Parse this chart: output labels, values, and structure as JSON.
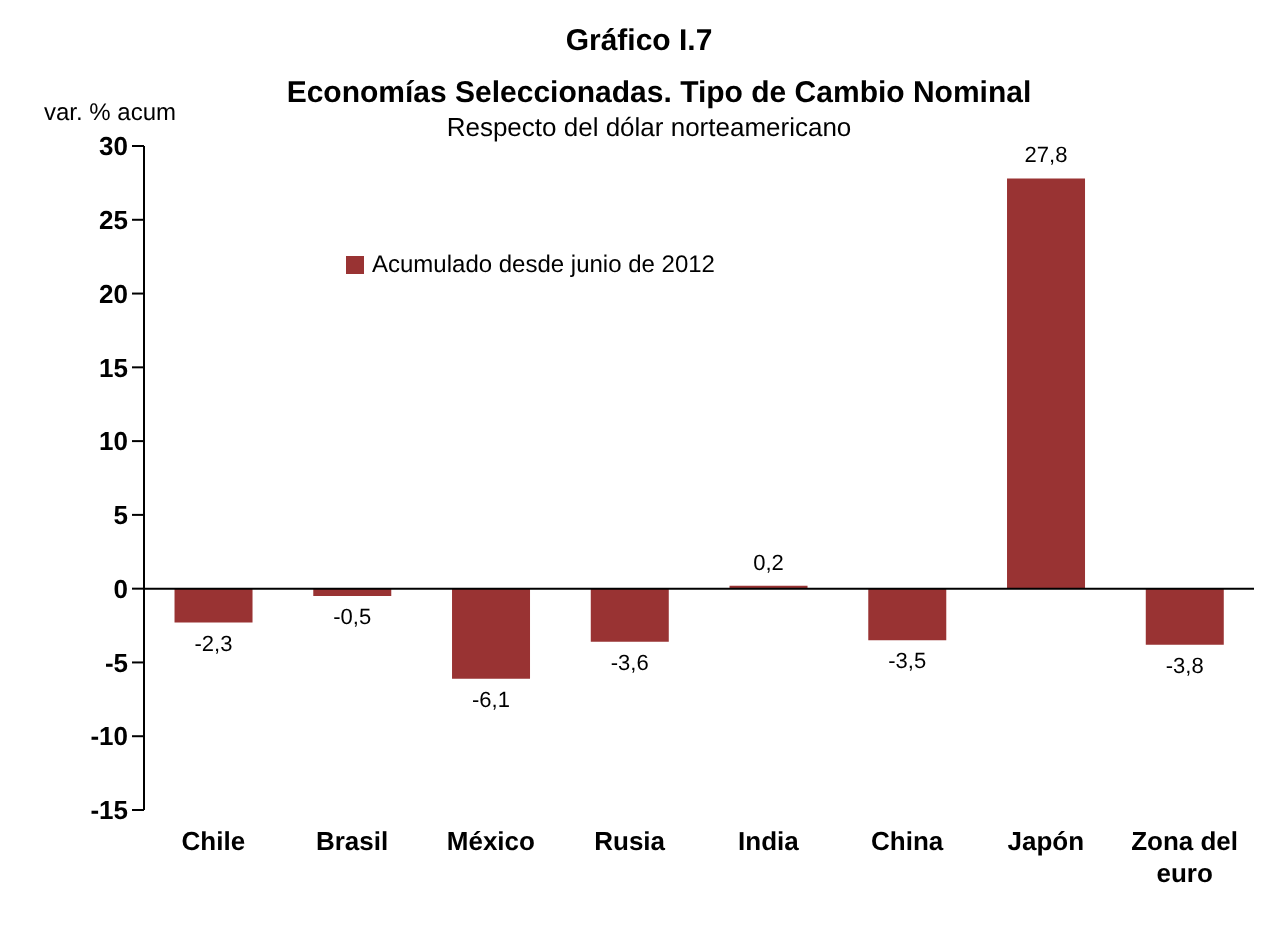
{
  "chart_data": {
    "type": "bar",
    "title": "Gráfico I.7",
    "subtitle": "Economías Seleccionadas. Tipo de Cambio Nominal",
    "annotations": [
      "Respecto del dólar norteamericano"
    ],
    "ylabel": "var. % acum",
    "categories": [
      "Chile",
      "Brasil",
      "México",
      "Rusia",
      "India",
      "China",
      "Japón",
      "Zona del euro"
    ],
    "series": [
      {
        "name": "Acumulado desde junio de 2012",
        "color": "#993333",
        "values": [
          -2.3,
          -0.5,
          -6.1,
          -3.6,
          0.2,
          -3.5,
          27.8,
          -3.8
        ],
        "value_labels": [
          "-2,3",
          "-0,5",
          "-6,1",
          "-3,6",
          "0,2",
          "-3,5",
          "27,8",
          "-3,8"
        ]
      }
    ],
    "ylim": [
      -15,
      30
    ],
    "yticks": [
      -15,
      -10,
      -5,
      0,
      5,
      10,
      15,
      20,
      25,
      30
    ],
    "legend": "top left"
  }
}
